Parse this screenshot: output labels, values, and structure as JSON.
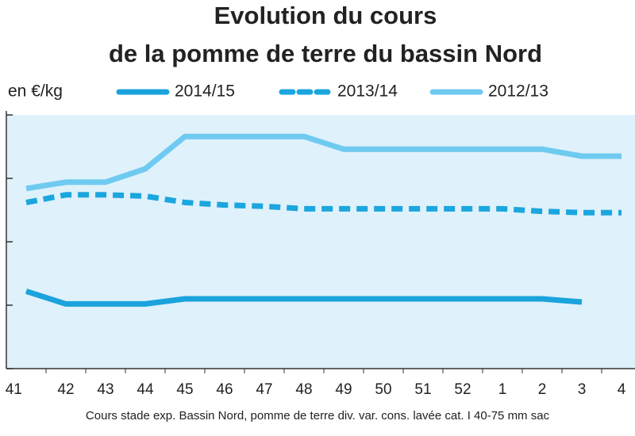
{
  "chart_data": {
    "type": "line",
    "title": "Evolution du cours",
    "subtitle": "de la pomme de terre du bassin Nord",
    "y_label": "en €/kg",
    "note": "Cours stade exp. Bassin Nord, pomme de terre div. var. cons. lavée cat. I 40-75 mm sac",
    "categories": [
      ". 41",
      "42",
      "43",
      "44",
      "45",
      "46",
      "47",
      "48",
      "49",
      "50",
      "51",
      "52",
      "1",
      "2",
      "3",
      "4"
    ],
    "ylim": [
      0,
      0.2
    ],
    "yticks": [
      0,
      0.05,
      0.1,
      0.15,
      0.2
    ],
    "series": [
      {
        "name": "2014/15",
        "color": "#1aa3dc",
        "dashed": false,
        "values": [
          0.061,
          0.051,
          0.051,
          0.051,
          0.055,
          0.055,
          0.055,
          0.055,
          0.055,
          0.055,
          0.055,
          0.055,
          0.055,
          0.055,
          0.0525,
          null
        ]
      },
      {
        "name": "2013/14",
        "color": "#1ba6de",
        "dashed": true,
        "values": [
          0.131,
          0.137,
          0.137,
          0.136,
          0.131,
          0.129,
          0.128,
          0.126,
          0.126,
          0.126,
          0.126,
          0.126,
          0.126,
          0.124,
          0.123,
          0.123
        ]
      },
      {
        "name": "2012/13",
        "color": "#6fcaf0",
        "dashed": false,
        "values": [
          0.142,
          0.147,
          0.147,
          0.1575,
          0.183,
          0.183,
          0.183,
          0.183,
          0.173,
          0.173,
          0.173,
          0.173,
          0.173,
          0.173,
          0.1675,
          0.1675
        ]
      }
    ]
  }
}
